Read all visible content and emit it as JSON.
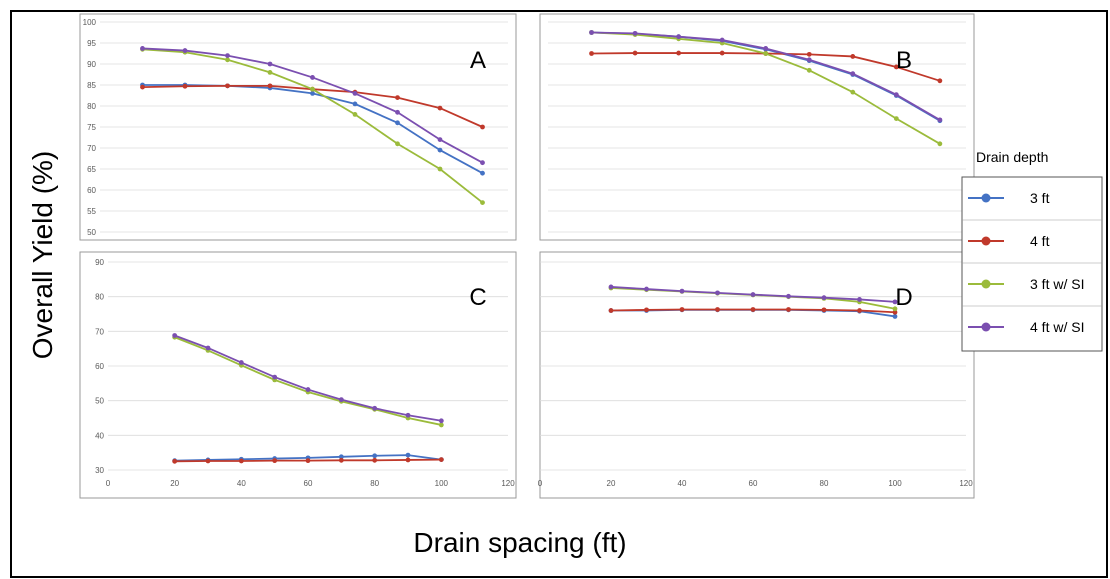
{
  "figure": {
    "ylabel": "Overall Yield (%)",
    "xlabel": "Drain spacing (ft)",
    "legend_title": "Drain depth"
  },
  "colors": {
    "3 ft": "#4472C4",
    "4 ft": "#C0392B",
    "3 ft w/ SI": "#9BBB3B",
    "4 ft w/ SI": "#7B4FB0",
    "grid": "#dcdcdc",
    "panel_border": "#9a9a9a"
  },
  "chart_data": [
    {
      "panel": "A",
      "type": "line",
      "x": [
        20,
        30,
        40,
        50,
        60,
        70,
        80,
        90,
        100
      ],
      "ylim": [
        50,
        100
      ],
      "yticks": [
        50,
        55,
        60,
        65,
        70,
        75,
        80,
        85,
        90,
        95,
        100
      ],
      "grid": true,
      "series": [
        {
          "name": "3 ft",
          "values": [
            85,
            85,
            84.8,
            84.3,
            83,
            80.5,
            76,
            69.5,
            64
          ]
        },
        {
          "name": "4 ft",
          "values": [
            84.5,
            84.7,
            84.8,
            84.8,
            84,
            83.3,
            82,
            79.5,
            75
          ]
        },
        {
          "name": "3 ft w/ SI",
          "values": [
            93.5,
            92.8,
            91,
            88,
            84,
            78,
            71,
            65,
            57
          ]
        },
        {
          "name": "4 ft w/ SI",
          "values": [
            93.7,
            93.2,
            92,
            90,
            86.8,
            83,
            78.5,
            72,
            66.5
          ]
        }
      ]
    },
    {
      "panel": "B",
      "type": "line",
      "x": [
        20,
        30,
        40,
        50,
        60,
        70,
        80,
        90,
        100
      ],
      "ylim": [
        50,
        100
      ],
      "yticks": [],
      "grid": true,
      "series": [
        {
          "name": "3 ft",
          "values": [
            97.5,
            97.2,
            96.5,
            95.5,
            93.5,
            90.8,
            87.5,
            82.5,
            76.5
          ]
        },
        {
          "name": "4 ft",
          "values": [
            92.5,
            92.6,
            92.6,
            92.6,
            92.5,
            92.3,
            91.8,
            89.3,
            86
          ]
        },
        {
          "name": "3 ft w/ SI",
          "values": [
            97.5,
            97,
            96,
            95,
            92.5,
            88.5,
            83.3,
            77,
            71
          ]
        },
        {
          "name": "4 ft w/ SI",
          "values": [
            97.5,
            97.3,
            96.5,
            95.7,
            93.7,
            91,
            87.7,
            82.7,
            76.7
          ]
        }
      ]
    },
    {
      "panel": "C",
      "type": "line",
      "x": [
        20,
        30,
        40,
        50,
        60,
        70,
        80,
        90,
        100
      ],
      "xlim": [
        0,
        120
      ],
      "xticks": [
        0,
        20,
        40,
        60,
        80,
        100,
        120
      ],
      "ylim": [
        30,
        90
      ],
      "yticks": [
        30,
        40,
        50,
        60,
        70,
        80,
        90
      ],
      "grid": true,
      "series": [
        {
          "name": "3 ft",
          "values": [
            32.7,
            32.9,
            33.1,
            33.3,
            33.5,
            33.8,
            34.1,
            34.3,
            33
          ]
        },
        {
          "name": "4 ft",
          "values": [
            32.5,
            32.6,
            32.6,
            32.7,
            32.7,
            32.8,
            32.8,
            32.9,
            33
          ]
        },
        {
          "name": "3 ft w/ SI",
          "values": [
            68.3,
            64.5,
            60.2,
            56,
            52.5,
            49.8,
            47.5,
            45,
            43
          ]
        },
        {
          "name": "4 ft w/ SI",
          "values": [
            68.8,
            65.2,
            61,
            56.8,
            53.2,
            50.3,
            47.8,
            45.8,
            44.2
          ]
        }
      ]
    },
    {
      "panel": "D",
      "type": "line",
      "x": [
        20,
        30,
        40,
        50,
        60,
        70,
        80,
        90,
        100
      ],
      "xlim": [
        0,
        120
      ],
      "xticks": [
        0,
        20,
        40,
        60,
        80,
        100,
        120
      ],
      "ylim": [
        30,
        90
      ],
      "yticks": [],
      "grid": true,
      "series": [
        {
          "name": "3 ft",
          "values": [
            76,
            76,
            76.2,
            76.2,
            76.2,
            76.2,
            76,
            75.8,
            74.3
          ]
        },
        {
          "name": "4 ft",
          "values": [
            76,
            76.2,
            76.3,
            76.3,
            76.3,
            76.3,
            76.2,
            76,
            75.5
          ]
        },
        {
          "name": "3 ft w/ SI",
          "values": [
            82.5,
            82,
            81.5,
            81,
            80.5,
            80,
            79.5,
            78.5,
            76.5
          ]
        },
        {
          "name": "4 ft w/ SI",
          "values": [
            82.8,
            82.2,
            81.6,
            81.1,
            80.6,
            80.1,
            79.7,
            79.2,
            78.5
          ]
        }
      ]
    }
  ],
  "legend": {
    "entries": [
      "3 ft",
      "4 ft",
      "3 ft w/ SI",
      "4 ft w/ SI"
    ]
  }
}
